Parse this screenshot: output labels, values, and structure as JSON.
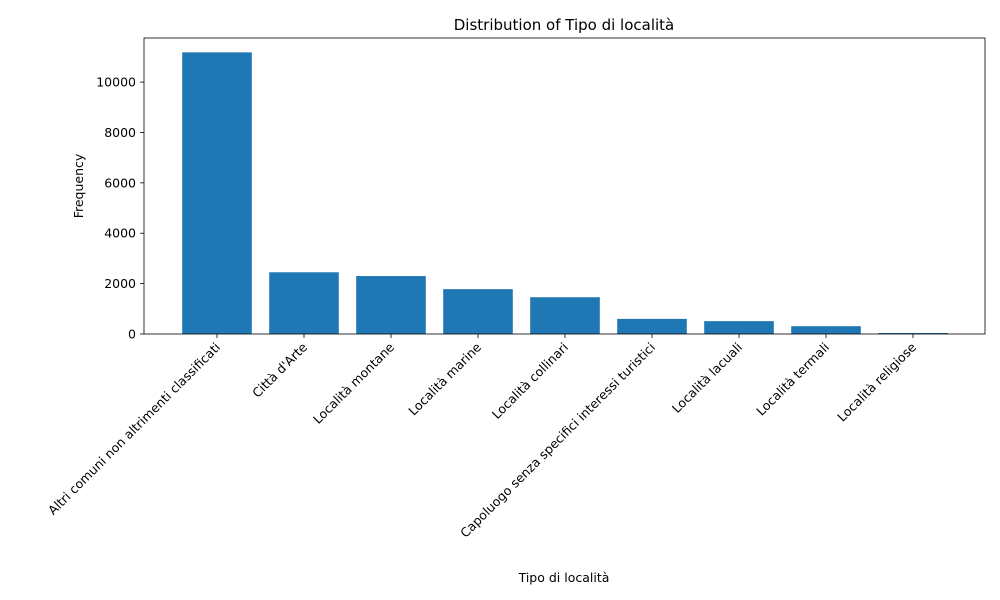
{
  "chart_data": {
    "type": "bar",
    "title": "Distribution of Tipo di località",
    "xlabel": "Tipo di località",
    "ylabel": "Frequency",
    "categories": [
      "Altri comuni non altrimenti classificati",
      "Città d'Arte",
      "Località montane",
      "Località marine",
      "Località collinari",
      "Capoluogo senza specifici interessi turistici",
      "Località lacuali",
      "Località termali",
      "Località religiose"
    ],
    "values": [
      11180,
      2450,
      2300,
      1780,
      1460,
      600,
      510,
      310,
      40
    ],
    "ylim": [
      0,
      11750
    ],
    "yticks": [
      0,
      2000,
      4000,
      6000,
      8000,
      10000
    ],
    "bar_color": "#1f77b4",
    "grid": false,
    "legend": "none"
  }
}
